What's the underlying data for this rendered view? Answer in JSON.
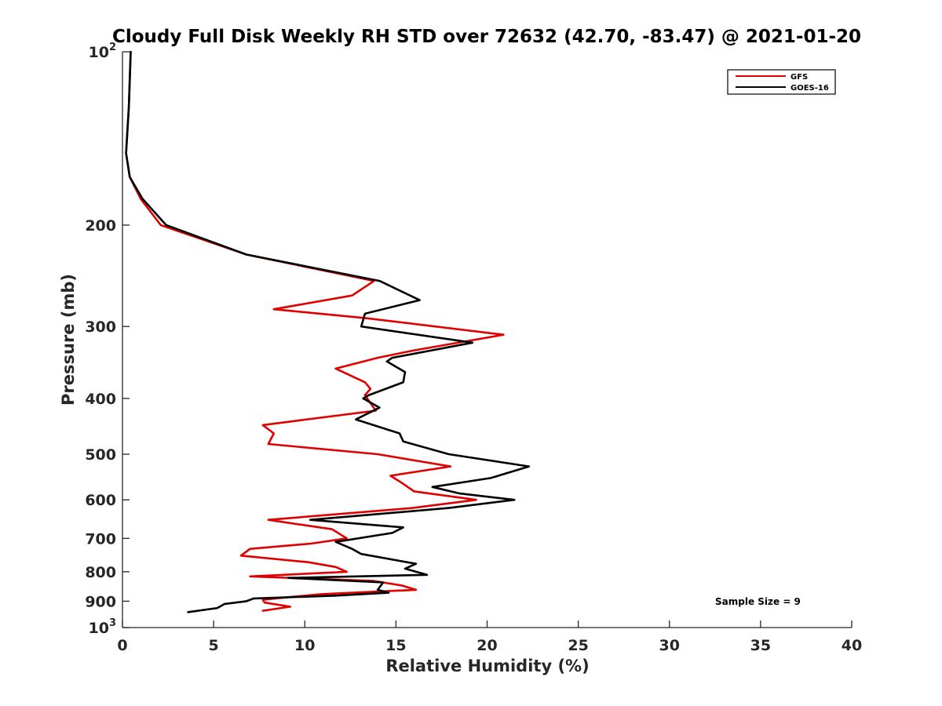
{
  "chart_data": {
    "type": "line",
    "title": "Cloudy Full Disk Weekly RH STD over 72632 (42.70, -83.47) @ 2021-01-20",
    "xlabel": "Relative Humidity (%)",
    "ylabel": "Pressure (mb)",
    "xlim": [
      0,
      40
    ],
    "ylim": [
      100,
      1000
    ],
    "yscale": "log",
    "y_reversed": true,
    "grid": false,
    "legend_position": "top-right",
    "x_ticks": [
      "0",
      "5",
      "10",
      "15",
      "20",
      "25",
      "30",
      "35",
      "40"
    ],
    "y_ticks": [
      {
        "value": 100,
        "base": "10",
        "exp": "2"
      },
      {
        "value": 200,
        "label": "200"
      },
      {
        "value": 300,
        "label": "300"
      },
      {
        "value": 400,
        "label": "400"
      },
      {
        "value": 500,
        "label": "500"
      },
      {
        "value": 600,
        "label": "600"
      },
      {
        "value": 700,
        "label": "700"
      },
      {
        "value": 800,
        "label": "800"
      },
      {
        "value": 900,
        "label": "900"
      },
      {
        "value": 1000,
        "base": "10",
        "exp": "3"
      }
    ],
    "annotation": "Sample Size = 9",
    "series": [
      {
        "name": "GFS",
        "color": "#e00000",
        "points": [
          [
            0.45,
            100
          ],
          [
            0.35,
            125
          ],
          [
            0.2,
            150
          ],
          [
            0.4,
            165
          ],
          [
            1.0,
            180
          ],
          [
            2.1,
            200
          ],
          [
            6.8,
            225
          ],
          [
            13.8,
            250
          ],
          [
            12.6,
            265
          ],
          [
            8.3,
            280
          ],
          [
            13.3,
            290
          ],
          [
            20.9,
            310
          ],
          [
            16.0,
            330
          ],
          [
            14.0,
            340
          ],
          [
            11.7,
            355
          ],
          [
            13.3,
            375
          ],
          [
            13.6,
            385
          ],
          [
            13.3,
            395
          ],
          [
            13.9,
            420
          ],
          [
            7.7,
            445
          ],
          [
            8.3,
            460
          ],
          [
            8.0,
            480
          ],
          [
            14.0,
            500
          ],
          [
            18.0,
            525
          ],
          [
            14.7,
            545
          ],
          [
            15.3,
            560
          ],
          [
            16.0,
            580
          ],
          [
            19.4,
            600
          ],
          [
            15.9,
            620
          ],
          [
            8.0,
            650
          ],
          [
            11.5,
            675
          ],
          [
            12.3,
            700
          ],
          [
            10.3,
            715
          ],
          [
            7.0,
            730
          ],
          [
            6.5,
            750
          ],
          [
            10.2,
            770
          ],
          [
            11.7,
            785
          ],
          [
            12.3,
            800
          ],
          [
            7.0,
            815
          ],
          [
            13.8,
            830
          ],
          [
            15.3,
            845
          ],
          [
            16.1,
            860
          ],
          [
            10.9,
            875
          ],
          [
            9.2,
            885
          ],
          [
            7.7,
            895
          ],
          [
            7.8,
            905
          ],
          [
            9.2,
            920
          ],
          [
            7.7,
            935
          ]
        ]
      },
      {
        "name": "GOES-16",
        "color": "#000000",
        "points": [
          [
            0.45,
            100
          ],
          [
            0.35,
            125
          ],
          [
            0.2,
            150
          ],
          [
            0.4,
            165
          ],
          [
            1.1,
            180
          ],
          [
            2.4,
            200
          ],
          [
            6.8,
            225
          ],
          [
            14.1,
            250
          ],
          [
            16.3,
            270
          ],
          [
            13.3,
            285
          ],
          [
            13.1,
            300
          ],
          [
            19.2,
            320
          ],
          [
            14.8,
            340
          ],
          [
            14.5,
            345
          ],
          [
            15.5,
            360
          ],
          [
            15.4,
            375
          ],
          [
            13.5,
            395
          ],
          [
            13.2,
            400
          ],
          [
            14.1,
            415
          ],
          [
            12.8,
            435
          ],
          [
            15.2,
            460
          ],
          [
            15.4,
            475
          ],
          [
            17.9,
            500
          ],
          [
            22.3,
            525
          ],
          [
            20.2,
            550
          ],
          [
            17.0,
            570
          ],
          [
            18.5,
            585
          ],
          [
            21.5,
            600
          ],
          [
            17.9,
            620
          ],
          [
            10.3,
            650
          ],
          [
            15.4,
            670
          ],
          [
            14.8,
            685
          ],
          [
            11.7,
            710
          ],
          [
            12.6,
            730
          ],
          [
            13.1,
            745
          ],
          [
            16.1,
            775
          ],
          [
            15.5,
            790
          ],
          [
            16.7,
            810
          ],
          [
            9.1,
            820
          ],
          [
            14.3,
            835
          ],
          [
            14.0,
            860
          ],
          [
            14.6,
            870
          ],
          [
            11.7,
            880
          ],
          [
            7.2,
            890
          ],
          [
            6.8,
            900
          ],
          [
            5.6,
            910
          ],
          [
            5.2,
            925
          ],
          [
            3.6,
            940
          ]
        ]
      }
    ]
  }
}
